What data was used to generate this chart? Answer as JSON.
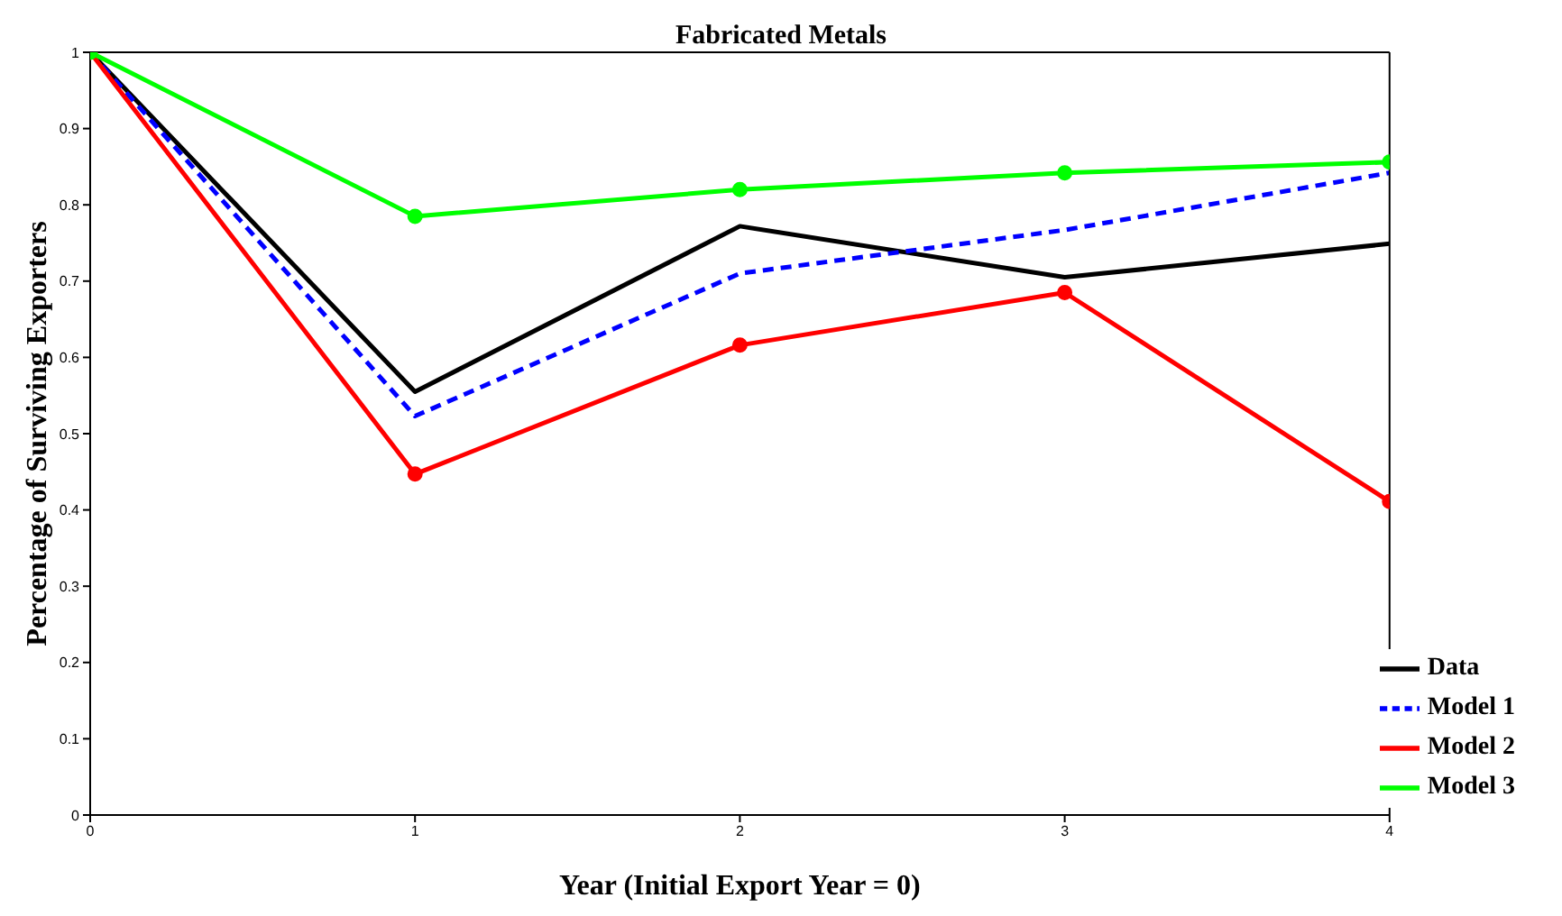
{
  "chart_data": {
    "type": "line",
    "title": "Fabricated Metals",
    "xlabel": "Year (Initial Export Year = 0)",
    "ylabel": "Percentage of Surviving Exporters",
    "x": [
      0,
      1,
      2,
      3,
      4
    ],
    "xlim": [
      0,
      4
    ],
    "xticks": [
      0,
      1,
      2,
      3,
      4
    ],
    "ylim": [
      0,
      1
    ],
    "yticks": [
      0,
      0.1,
      0.2,
      0.3,
      0.4,
      0.5,
      0.6,
      0.7,
      0.8,
      0.9,
      1
    ],
    "legend": "bottom right",
    "grid": false,
    "series": [
      {
        "name": "Data",
        "color": "#000000",
        "values": [
          1,
          0.555,
          0.772,
          0.705,
          0.749
        ],
        "marker": "none",
        "line_style": "solid"
      },
      {
        "name": "Model 1",
        "color": "#0000ff",
        "values": [
          1,
          0.523,
          0.71,
          0.767,
          0.842
        ],
        "marker": "none",
        "line_style": "dashed"
      },
      {
        "name": "Model 2",
        "color": "#ff0000",
        "values": [
          1,
          0.447,
          0.616,
          0.685,
          0.411
        ],
        "marker": "circle",
        "line_style": "solid"
      },
      {
        "name": "Model 3",
        "color": "#00ff00",
        "values": [
          1,
          0.785,
          0.82,
          0.842,
          0.856
        ],
        "marker": "circle",
        "line_style": "solid"
      }
    ]
  }
}
